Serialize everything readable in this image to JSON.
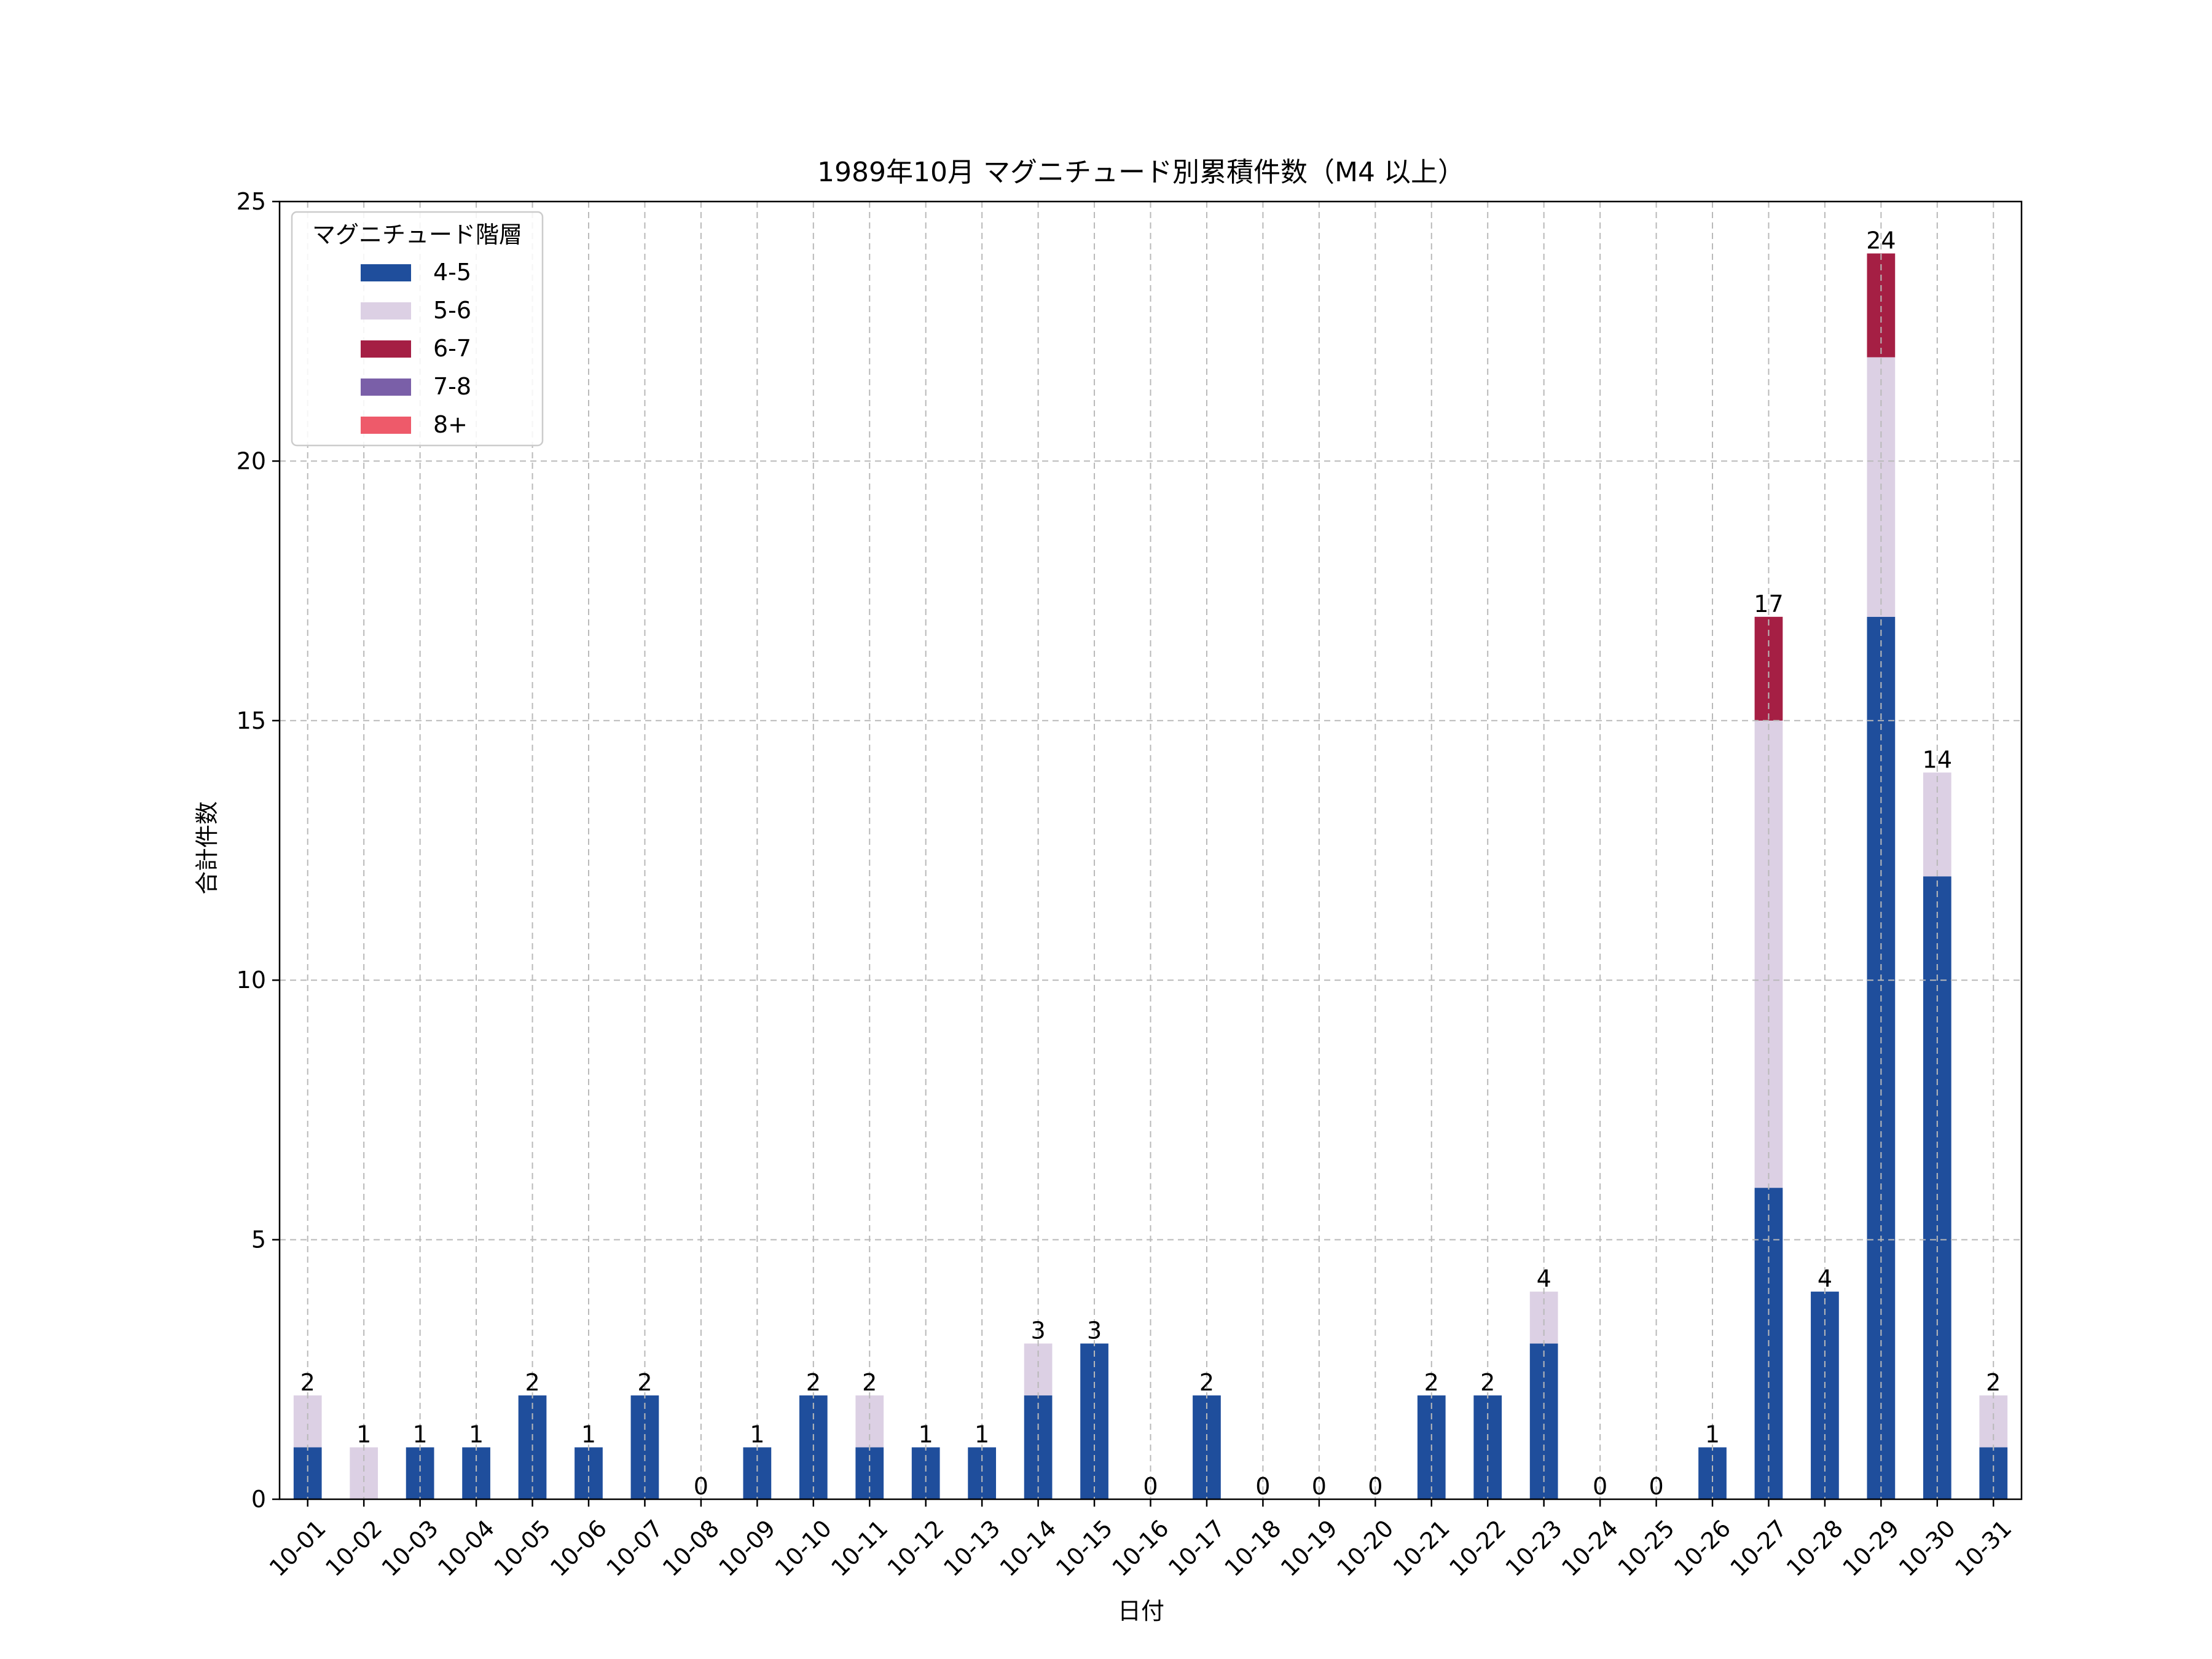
{
  "chart_data": {
    "type": "bar",
    "stacked": true,
    "title": "1989年10月 マグニチュード別累積件数（M4 以上）",
    "xlabel": "日付",
    "ylabel": "合計件数",
    "ylim": [
      0,
      25
    ],
    "yticks": [
      0,
      5,
      10,
      15,
      20,
      25
    ],
    "grid": true,
    "legend": {
      "title": "マグニチュード階層",
      "placement": "top-left"
    },
    "categories": [
      "10-01",
      "10-02",
      "10-03",
      "10-04",
      "10-05",
      "10-06",
      "10-07",
      "10-08",
      "10-09",
      "10-10",
      "10-11",
      "10-12",
      "10-13",
      "10-14",
      "10-15",
      "10-16",
      "10-17",
      "10-18",
      "10-19",
      "10-20",
      "10-21",
      "10-22",
      "10-23",
      "10-24",
      "10-25",
      "10-26",
      "10-27",
      "10-28",
      "10-29",
      "10-30",
      "10-31"
    ],
    "series": [
      {
        "name": "4-5",
        "color": "#1f4e9c",
        "values": [
          1,
          0,
          1,
          1,
          2,
          1,
          2,
          0,
          1,
          2,
          1,
          1,
          1,
          2,
          3,
          0,
          2,
          0,
          0,
          0,
          2,
          2,
          3,
          0,
          0,
          1,
          6,
          4,
          17,
          12,
          1
        ]
      },
      {
        "name": "5-6",
        "color": "#dcd0e4",
        "values": [
          1,
          1,
          0,
          0,
          0,
          0,
          0,
          0,
          0,
          0,
          1,
          0,
          0,
          1,
          0,
          0,
          0,
          0,
          0,
          0,
          0,
          0,
          1,
          0,
          0,
          0,
          9,
          0,
          5,
          2,
          1
        ]
      },
      {
        "name": "6-7",
        "color": "#a51f44",
        "values": [
          0,
          0,
          0,
          0,
          0,
          0,
          0,
          0,
          0,
          0,
          0,
          0,
          0,
          0,
          0,
          0,
          0,
          0,
          0,
          0,
          0,
          0,
          0,
          0,
          0,
          0,
          2,
          0,
          2,
          0,
          0
        ]
      },
      {
        "name": "7-8",
        "color": "#7a5fa8",
        "values": [
          0,
          0,
          0,
          0,
          0,
          0,
          0,
          0,
          0,
          0,
          0,
          0,
          0,
          0,
          0,
          0,
          0,
          0,
          0,
          0,
          0,
          0,
          0,
          0,
          0,
          0,
          0,
          0,
          0,
          0,
          0
        ]
      },
      {
        "name": "8+",
        "color": "#ee5a6a",
        "values": [
          0,
          0,
          0,
          0,
          0,
          0,
          0,
          0,
          0,
          0,
          0,
          0,
          0,
          0,
          0,
          0,
          0,
          0,
          0,
          0,
          0,
          0,
          0,
          0,
          0,
          0,
          0,
          0,
          0,
          0,
          0
        ]
      }
    ],
    "totals": [
      2,
      1,
      1,
      1,
      2,
      1,
      2,
      0,
      1,
      2,
      2,
      1,
      1,
      3,
      3,
      0,
      2,
      0,
      0,
      0,
      2,
      2,
      4,
      0,
      0,
      1,
      17,
      4,
      24,
      14,
      2
    ]
  }
}
